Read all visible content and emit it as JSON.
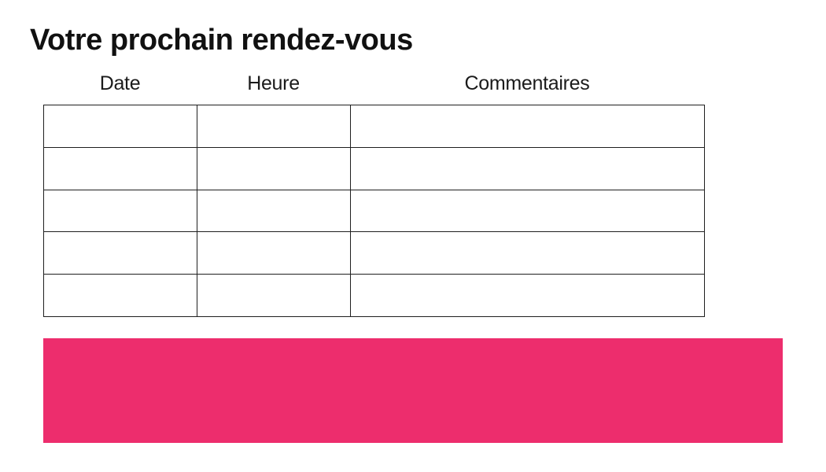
{
  "page": {
    "title": "Votre prochain rendez-vous"
  },
  "table": {
    "columns": [
      {
        "label": "Date"
      },
      {
        "label": "Heure"
      },
      {
        "label": "Commentaires"
      }
    ],
    "rows": [
      [
        "",
        "",
        ""
      ],
      [
        "",
        "",
        ""
      ],
      [
        "",
        "",
        ""
      ],
      [
        "",
        "",
        ""
      ],
      [
        "",
        "",
        ""
      ]
    ]
  },
  "colors": {
    "accent_pink": "#ED2D6D",
    "table_border": "#1F1F1F",
    "title_text": "#111111",
    "header_text": "#1B1B1B",
    "background": "#FFFFFF"
  }
}
